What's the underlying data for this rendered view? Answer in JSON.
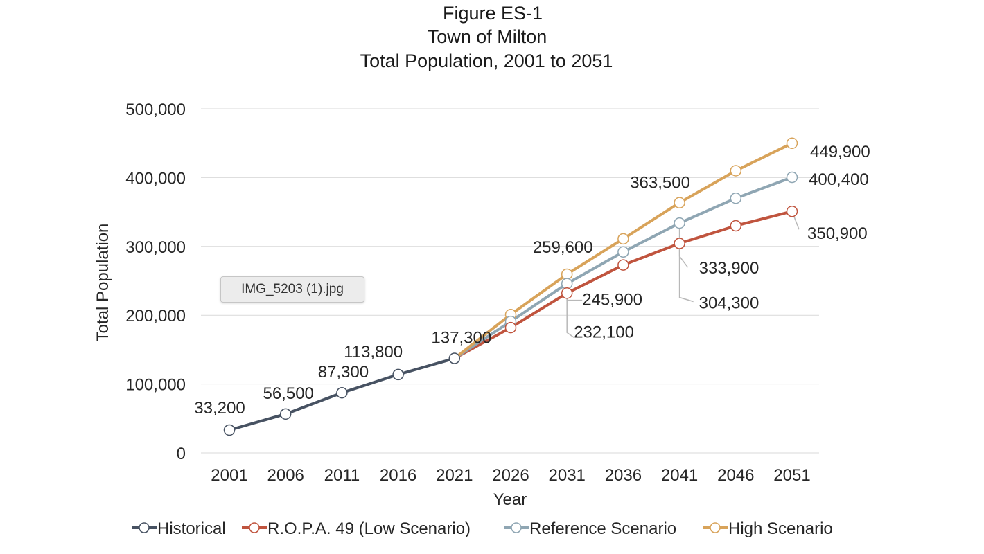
{
  "tooltip": {
    "text": "IMG_5203 (1).jpg"
  },
  "chart_data": {
    "type": "line",
    "title": [
      "Figure ES-1",
      "Town of Milton",
      "Total Population, 2001 to 2051"
    ],
    "xlabel": "Year",
    "ylabel": "Total Population",
    "ylim": [
      0,
      500000
    ],
    "yticks": [
      0,
      100000,
      200000,
      300000,
      400000,
      500000
    ],
    "ytick_labels": [
      "0",
      "100,000",
      "200,000",
      "300,000",
      "400,000",
      "500,000"
    ],
    "categories": [
      "2001",
      "2006",
      "2011",
      "2016",
      "2021",
      "2026",
      "2031",
      "2036",
      "2041",
      "2046",
      "2051"
    ],
    "grid": true,
    "legend_position": "bottom",
    "series": [
      {
        "name": "Historical",
        "color": "#475262",
        "values": [
          33200,
          56500,
          87300,
          113800,
          137300,
          null,
          null,
          null,
          null,
          null,
          null
        ]
      },
      {
        "name": "R.O.P.A. 49 (Low Scenario)",
        "color": "#c0543e",
        "values": [
          null,
          null,
          null,
          null,
          137300,
          182000,
          232100,
          273000,
          304300,
          330000,
          350900
        ]
      },
      {
        "name": "Reference Scenario",
        "color": "#8fa6b3",
        "values": [
          null,
          null,
          null,
          null,
          137300,
          191000,
          245900,
          292000,
          333900,
          370000,
          400400
        ]
      },
      {
        "name": "High Scenario",
        "color": "#d8a35a",
        "values": [
          null,
          null,
          null,
          null,
          137300,
          201000,
          259600,
          311000,
          363500,
          410000,
          449900
        ]
      }
    ],
    "data_labels": [
      {
        "series": 0,
        "index": 0,
        "text": "33,200"
      },
      {
        "series": 0,
        "index": 1,
        "text": "56,500"
      },
      {
        "series": 0,
        "index": 2,
        "text": "87,300"
      },
      {
        "series": 0,
        "index": 3,
        "text": "113,800"
      },
      {
        "series": 0,
        "index": 4,
        "text": "137,300"
      },
      {
        "series": 3,
        "index": 6,
        "text": "259,600"
      },
      {
        "series": 2,
        "index": 6,
        "text": "245,900"
      },
      {
        "series": 1,
        "index": 6,
        "text": "232,100"
      },
      {
        "series": 3,
        "index": 8,
        "text": "363,500"
      },
      {
        "series": 2,
        "index": 8,
        "text": "333,900"
      },
      {
        "series": 1,
        "index": 8,
        "text": "304,300"
      },
      {
        "series": 3,
        "index": 10,
        "text": "449,900"
      },
      {
        "series": 2,
        "index": 10,
        "text": "400,400"
      },
      {
        "series": 1,
        "index": 10,
        "text": "350,900"
      }
    ]
  }
}
